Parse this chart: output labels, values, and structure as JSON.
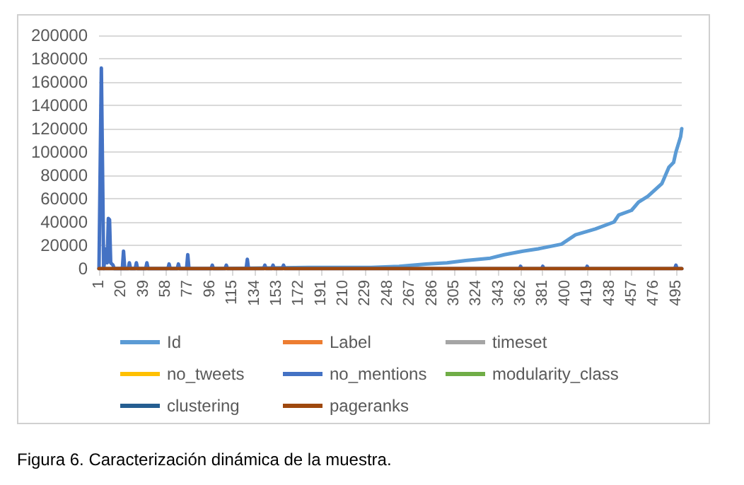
{
  "chart_data": {
    "type": "line",
    "annotations": [
      "Figura 6. Caracterización dinámica de la muestra."
    ],
    "xlim": [
      1,
      500
    ],
    "xticks": [
      1,
      20,
      39,
      58,
      77,
      96,
      115,
      134,
      153,
      172,
      191,
      210,
      229,
      248,
      267,
      286,
      305,
      324,
      343,
      362,
      381,
      400,
      419,
      438,
      457,
      476,
      495
    ],
    "ylim": [
      0,
      200000
    ],
    "yticks": [
      0,
      20000,
      40000,
      60000,
      80000,
      100000,
      120000,
      140000,
      160000,
      180000,
      200000
    ],
    "grid": "y",
    "legend": "bottom",
    "series": [
      {
        "name": "Id",
        "color": "#5b9bd5",
        "x": [
          1,
          100,
          180,
          234,
          258,
          281,
          299,
          315,
          336,
          348,
          364,
          377,
          397,
          409,
          426,
          442,
          446,
          457,
          463,
          471,
          483,
          489,
          493,
          495,
          499,
          500
        ],
        "values": [
          0,
          0,
          1000,
          1000,
          2000,
          4000,
          5000,
          7000,
          9000,
          12000,
          15000,
          17000,
          21000,
          29000,
          34000,
          40000,
          46000,
          50000,
          57000,
          62000,
          73000,
          87000,
          91000,
          100000,
          113000,
          120000
        ]
      },
      {
        "name": "Label",
        "color": "#ed7d31",
        "values": [
          null
        ]
      },
      {
        "name": "timeset",
        "color": "#a5a5a5",
        "values": [
          null
        ]
      },
      {
        "name": "no_tweets",
        "color": "#ffc000",
        "values": [
          null
        ]
      },
      {
        "name": "no_mentions",
        "color": "#4472c4",
        "x": [
          1,
          3,
          5,
          7,
          8,
          9,
          10,
          11,
          13,
          14,
          21,
          22,
          23,
          26,
          27,
          28,
          32,
          33,
          34,
          41,
          42,
          43,
          60,
          61,
          62,
          68,
          69,
          70,
          76,
          77,
          78,
          97,
          98,
          99,
          109,
          110,
          111,
          127,
          128,
          129,
          142,
          143,
          144,
          149,
          150,
          151,
          158,
          159,
          160,
          361,
          362,
          363,
          380,
          381,
          382,
          418,
          419,
          420,
          494,
          495,
          496,
          500
        ],
        "values": [
          0,
          172000,
          0,
          17000,
          5000,
          43000,
          42000,
          5000,
          3000,
          0,
          0,
          15000,
          0,
          0,
          5000,
          0,
          0,
          5000,
          0,
          0,
          5000,
          0,
          0,
          4000,
          0,
          0,
          4000,
          0,
          0,
          12000,
          0,
          0,
          3000,
          0,
          0,
          3000,
          0,
          0,
          8000,
          0,
          0,
          3000,
          0,
          0,
          3000,
          0,
          0,
          3000,
          0,
          0,
          2000,
          0,
          0,
          2000,
          0,
          0,
          2000,
          0,
          0,
          3000,
          0,
          0
        ]
      },
      {
        "name": "modularity_class",
        "color": "#70ad47",
        "values": [
          null
        ]
      },
      {
        "name": "clustering",
        "color": "#255e91",
        "values": [
          null
        ]
      },
      {
        "name": "pageranks",
        "color": "#9e480e",
        "x": [
          1,
          500
        ],
        "values": [
          0,
          0
        ]
      }
    ]
  }
}
